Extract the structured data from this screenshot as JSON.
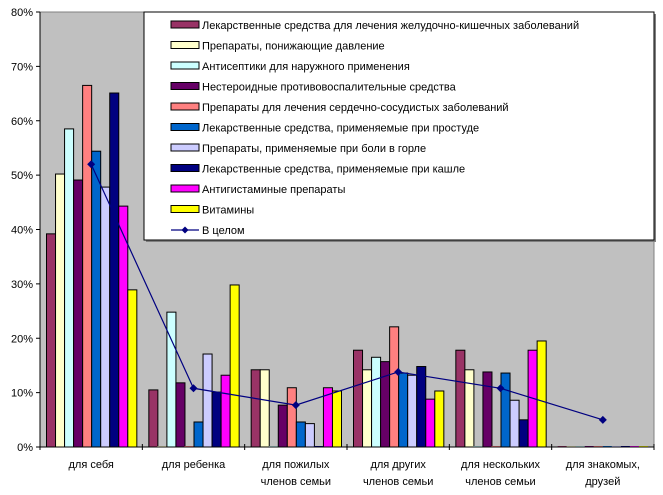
{
  "chart_data": {
    "type": "bar",
    "title": "",
    "xlabel": "",
    "ylabel": "",
    "ylim": [
      0,
      0.8
    ],
    "y_ticks": [
      "0%",
      "10%",
      "20%",
      "30%",
      "40%",
      "50%",
      "60%",
      "70%",
      "80%"
    ],
    "y_tick_values": [
      0,
      0.1,
      0.2,
      0.3,
      0.4,
      0.5,
      0.6,
      0.7,
      0.8
    ],
    "grid": false,
    "legend_position": "top-right",
    "plot_background": "#c0c0c0",
    "categories": [
      [
        "для себя"
      ],
      [
        "для ребенка"
      ],
      [
        "для пожилых",
        "членов семьи"
      ],
      [
        "для других",
        "членов семьи"
      ],
      [
        "для нескольких",
        "членов семьи"
      ],
      [
        "для знакомых,",
        "друзей"
      ]
    ],
    "series": [
      {
        "name": "Лекарственные средства для лечения желудочно-кишечных заболеваний",
        "type": "bar",
        "color": "#993366",
        "values": [
          0.392,
          0.105,
          0.142,
          0.178,
          0.178,
          0
        ]
      },
      {
        "name": "Препараты, понижающие давление",
        "type": "bar",
        "color": "#ffffcc",
        "values": [
          0.502,
          0,
          0.142,
          0.142,
          0.142,
          0
        ]
      },
      {
        "name": "Антисептики для наружного применения",
        "type": "bar",
        "color": "#ccffff",
        "values": [
          0.585,
          0.248,
          0,
          0.165,
          0,
          0
        ]
      },
      {
        "name": "Нестероидные противовоспалительные средства",
        "type": "bar",
        "color": "#660066",
        "values": [
          0.491,
          0.118,
          0.077,
          0.157,
          0.138,
          0
        ]
      },
      {
        "name": "Препараты для лечения сердечно-сосудистых заболеваний",
        "type": "bar",
        "color": "#ff8080",
        "values": [
          0.665,
          0,
          0.109,
          0.221,
          0,
          0
        ]
      },
      {
        "name": "Лекарственные средства, применяемые при простуде",
        "type": "bar",
        "color": "#0066cc",
        "values": [
          0.544,
          0.046,
          0.046,
          0.136,
          0.136,
          0
        ]
      },
      {
        "name": "Препараты, применяемые при боли в горле",
        "type": "bar",
        "color": "#ccccff",
        "values": [
          0.478,
          0.171,
          0.043,
          0.132,
          0.086,
          0
        ]
      },
      {
        "name": "Лекарственные средства, применяемые при кашле",
        "type": "bar",
        "color": "#000080",
        "values": [
          0.651,
          0.101,
          0,
          0.148,
          0.05,
          0
        ]
      },
      {
        "name": "Антигистаминые препараты",
        "type": "bar",
        "color": "#ff00ff",
        "values": [
          0.443,
          0.132,
          0.109,
          0.088,
          0.178,
          0
        ]
      },
      {
        "name": "Витамины",
        "type": "bar",
        "color": "#ffff00",
        "values": [
          0.289,
          0.298,
          0.103,
          0.103,
          0.195,
          0
        ]
      },
      {
        "name": "В целом",
        "type": "line",
        "color": "#000080",
        "values": [
          0.52,
          0.108,
          0.077,
          0.138,
          0.108,
          0.05
        ]
      }
    ]
  }
}
